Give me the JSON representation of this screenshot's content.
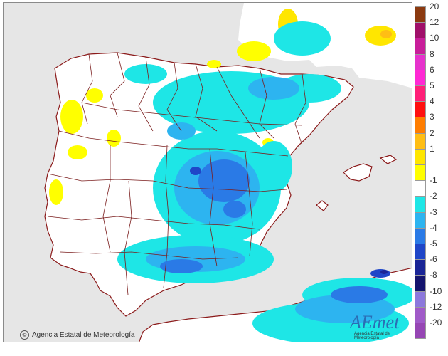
{
  "map": {
    "credit": "Agencia Estatal de Meteorología",
    "logo_text": "AEmet",
    "logo_subtitle": "Agencia Estatal de Meteorología",
    "colors": {
      "sea": "#e6e6e6",
      "land": "#ffffff",
      "borders": "#7a1c1c",
      "coast": "#8b1a1a"
    }
  },
  "legend": {
    "classes": [
      {
        "label": "20",
        "color": "#8b3a10"
      },
      {
        "label": "12",
        "color": "#a0106a"
      },
      {
        "label": "10",
        "color": "#c81e9a"
      },
      {
        "label": "8",
        "color": "#e632cc"
      },
      {
        "label": "6",
        "color": "#ff28d4"
      },
      {
        "label": "5",
        "color": "#ff1f78"
      },
      {
        "label": "4",
        "color": "#ff1010"
      },
      {
        "label": "3",
        "color": "#ff7d00"
      },
      {
        "label": "2",
        "color": "#ffbe14"
      },
      {
        "label": "1",
        "color": "#ffe600"
      },
      {
        "label": "",
        "color": "#ffff00"
      },
      {
        "label": "-1",
        "color": "#ffffff"
      },
      {
        "label": "-2",
        "color": "#1ee6e6"
      },
      {
        "label": "-3",
        "color": "#2db4f0"
      },
      {
        "label": "-4",
        "color": "#2a7ae6"
      },
      {
        "label": "-5",
        "color": "#1f46c8"
      },
      {
        "label": "-6",
        "color": "#1a2596"
      },
      {
        "label": "-8",
        "color": "#14146e"
      },
      {
        "label": "-10",
        "color": "#8c78dc"
      },
      {
        "label": "-12",
        "color": "#a05ac8"
      },
      {
        "label": "-20",
        "color": "#9646b4"
      }
    ]
  }
}
